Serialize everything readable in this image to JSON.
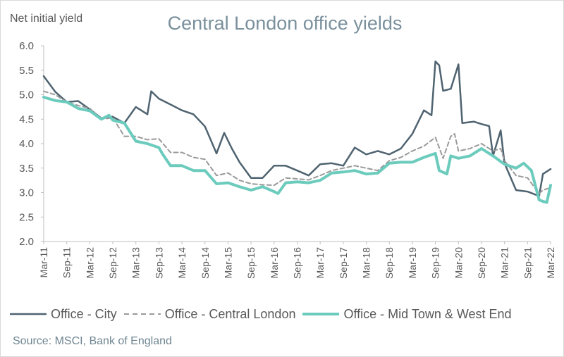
{
  "chart_data": {
    "type": "line",
    "title": "Central London office yields",
    "ylabel": "Net initial yield",
    "xlabel": "",
    "ylim": [
      2.0,
      6.0
    ],
    "yticks": [
      "2.0",
      "2.5",
      "3.0",
      "3.5",
      "4.0",
      "4.5",
      "5.0",
      "5.5",
      "6.0"
    ],
    "x_tick_labels": [
      "Mar-11",
      "Sep-11",
      "Mar-12",
      "Sep-12",
      "Mar-13",
      "Sep-13",
      "Mar-14",
      "Sep-14",
      "Mar-15",
      "Sep-15",
      "Mar-16",
      "Sep-16",
      "Mar-17",
      "Sep-17",
      "Mar-18",
      "Sep-18",
      "Mar-19",
      "Sep-19",
      "Mar-20",
      "Sep-20",
      "Mar-21",
      "Sep-21",
      "Mar-22"
    ],
    "x_start": "Mar-11",
    "x_end": "Mar-22",
    "grid": false,
    "legend_position": "bottom",
    "source": "Source: MSCI, Bank of England",
    "series": [
      {
        "name": "Office - City",
        "color": "#4f6370",
        "dash": "solid",
        "points": [
          [
            "Mar-11",
            5.38
          ],
          [
            "Jun-11",
            5.06
          ],
          [
            "Sep-11",
            4.85
          ],
          [
            "Dec-11",
            4.87
          ],
          [
            "Mar-12",
            4.7
          ],
          [
            "Jun-12",
            4.52
          ],
          [
            "Sep-12",
            4.55
          ],
          [
            "Dec-12",
            4.42
          ],
          [
            "Mar-13",
            4.75
          ],
          [
            "Jun-13",
            4.6
          ],
          [
            "Jul-13",
            5.07
          ],
          [
            "Sep-13",
            4.92
          ],
          [
            "Dec-13",
            4.8
          ],
          [
            "Mar-14",
            4.68
          ],
          [
            "Jun-14",
            4.6
          ],
          [
            "Sep-14",
            4.35
          ],
          [
            "Dec-14",
            3.8
          ],
          [
            "Feb-15",
            4.22
          ],
          [
            "Apr-15",
            3.9
          ],
          [
            "Jun-15",
            3.62
          ],
          [
            "Sep-15",
            3.3
          ],
          [
            "Dec-15",
            3.3
          ],
          [
            "Mar-16",
            3.55
          ],
          [
            "Jun-16",
            3.55
          ],
          [
            "Sep-16",
            3.45
          ],
          [
            "Dec-16",
            3.35
          ],
          [
            "Mar-17",
            3.58
          ],
          [
            "Jun-17",
            3.6
          ],
          [
            "Sep-17",
            3.55
          ],
          [
            "Dec-17",
            3.92
          ],
          [
            "Mar-18",
            3.78
          ],
          [
            "Jun-18",
            3.85
          ],
          [
            "Sep-18",
            3.78
          ],
          [
            "Dec-18",
            3.9
          ],
          [
            "Mar-19",
            4.2
          ],
          [
            "Jun-19",
            4.68
          ],
          [
            "Aug-19",
            4.58
          ],
          [
            "Sep-19",
            5.68
          ],
          [
            "Oct-19",
            5.6
          ],
          [
            "Nov-19",
            5.08
          ],
          [
            "Jan-20",
            5.12
          ],
          [
            "Mar-20",
            5.62
          ],
          [
            "Apr-20",
            4.42
          ],
          [
            "Jul-20",
            4.45
          ],
          [
            "Sep-20",
            4.4
          ],
          [
            "Nov-20",
            4.36
          ],
          [
            "Dec-20",
            3.75
          ],
          [
            "Feb-21",
            4.27
          ],
          [
            "Mar-21",
            3.6
          ],
          [
            "Jun-21",
            3.05
          ],
          [
            "Sep-21",
            3.02
          ],
          [
            "Dec-21",
            2.93
          ],
          [
            "Jan-22",
            3.38
          ],
          [
            "Mar-22",
            3.48
          ]
        ]
      },
      {
        "name": "Office - Central London",
        "color": "#9a9a9a",
        "dash": "dashed",
        "points": [
          [
            "Mar-11",
            5.07
          ],
          [
            "Jun-11",
            5.0
          ],
          [
            "Sep-11",
            4.85
          ],
          [
            "Dec-11",
            4.78
          ],
          [
            "Mar-12",
            4.72
          ],
          [
            "Jun-12",
            4.5
          ],
          [
            "Sep-12",
            4.53
          ],
          [
            "Dec-12",
            4.15
          ],
          [
            "Mar-13",
            4.15
          ],
          [
            "Jun-13",
            4.08
          ],
          [
            "Sep-13",
            4.1
          ],
          [
            "Dec-13",
            3.82
          ],
          [
            "Mar-14",
            3.82
          ],
          [
            "Jun-14",
            3.72
          ],
          [
            "Sep-14",
            3.68
          ],
          [
            "Dec-14",
            3.35
          ],
          [
            "Mar-15",
            3.4
          ],
          [
            "Jun-15",
            3.25
          ],
          [
            "Sep-15",
            3.18
          ],
          [
            "Dec-15",
            3.16
          ],
          [
            "Mar-16",
            3.15
          ],
          [
            "Jun-16",
            3.3
          ],
          [
            "Sep-16",
            3.28
          ],
          [
            "Dec-16",
            3.26
          ],
          [
            "Mar-17",
            3.35
          ],
          [
            "Jun-17",
            3.45
          ],
          [
            "Sep-17",
            3.5
          ],
          [
            "Dec-17",
            3.55
          ],
          [
            "Mar-18",
            3.5
          ],
          [
            "Jun-18",
            3.45
          ],
          [
            "Sep-18",
            3.65
          ],
          [
            "Dec-18",
            3.72
          ],
          [
            "Mar-19",
            3.85
          ],
          [
            "Jun-19",
            3.95
          ],
          [
            "Sep-19",
            4.13
          ],
          [
            "Nov-19",
            3.7
          ],
          [
            "Jan-20",
            4.15
          ],
          [
            "Feb-20",
            4.2
          ],
          [
            "Mar-20",
            3.85
          ],
          [
            "Jun-20",
            3.9
          ],
          [
            "Sep-20",
            4.0
          ],
          [
            "Dec-20",
            3.85
          ],
          [
            "Feb-21",
            3.9
          ],
          [
            "Mar-21",
            3.65
          ],
          [
            "Jun-21",
            3.35
          ],
          [
            "Sep-21",
            3.3
          ],
          [
            "Dec-21",
            2.98
          ],
          [
            "Jan-22",
            3.05
          ],
          [
            "Mar-22",
            3.1
          ]
        ]
      },
      {
        "name": "Office - Mid Town & West End",
        "color": "#6bcbbd",
        "dash": "solid",
        "points": [
          [
            "Mar-11",
            4.95
          ],
          [
            "Jun-11",
            4.88
          ],
          [
            "Sep-11",
            4.85
          ],
          [
            "Dec-11",
            4.72
          ],
          [
            "Mar-12",
            4.67
          ],
          [
            "Jun-12",
            4.5
          ],
          [
            "Aug-12",
            4.58
          ],
          [
            "Sep-12",
            4.48
          ],
          [
            "Dec-12",
            4.42
          ],
          [
            "Mar-13",
            4.05
          ],
          [
            "Jun-13",
            4.0
          ],
          [
            "Sep-13",
            3.92
          ],
          [
            "Oct-13",
            3.78
          ],
          [
            "Dec-13",
            3.55
          ],
          [
            "Mar-14",
            3.55
          ],
          [
            "Jun-14",
            3.45
          ],
          [
            "Sep-14",
            3.45
          ],
          [
            "Dec-14",
            3.18
          ],
          [
            "Mar-15",
            3.2
          ],
          [
            "Jun-15",
            3.12
          ],
          [
            "Sep-15",
            3.05
          ],
          [
            "Dec-15",
            3.12
          ],
          [
            "Mar-16",
            3.02
          ],
          [
            "Apr-16",
            2.98
          ],
          [
            "Jun-16",
            3.2
          ],
          [
            "Sep-16",
            3.22
          ],
          [
            "Dec-16",
            3.2
          ],
          [
            "Mar-17",
            3.25
          ],
          [
            "Jun-17",
            3.4
          ],
          [
            "Sep-17",
            3.42
          ],
          [
            "Dec-17",
            3.45
          ],
          [
            "Mar-18",
            3.38
          ],
          [
            "Jun-18",
            3.4
          ],
          [
            "Sep-18",
            3.6
          ],
          [
            "Dec-18",
            3.62
          ],
          [
            "Mar-19",
            3.62
          ],
          [
            "Jun-19",
            3.72
          ],
          [
            "Sep-19",
            3.8
          ],
          [
            "Oct-19",
            3.45
          ],
          [
            "Dec-19",
            3.38
          ],
          [
            "Jan-20",
            3.75
          ],
          [
            "Mar-20",
            3.7
          ],
          [
            "Jun-20",
            3.75
          ],
          [
            "Sep-20",
            3.9
          ],
          [
            "Dec-20",
            3.75
          ],
          [
            "Mar-21",
            3.58
          ],
          [
            "Jun-21",
            3.5
          ],
          [
            "Aug-21",
            3.6
          ],
          [
            "Oct-21",
            3.45
          ],
          [
            "Dec-21",
            2.85
          ],
          [
            "Jan-22",
            2.82
          ],
          [
            "Feb-22",
            2.8
          ],
          [
            "Mar-22",
            3.15
          ]
        ]
      }
    ]
  }
}
